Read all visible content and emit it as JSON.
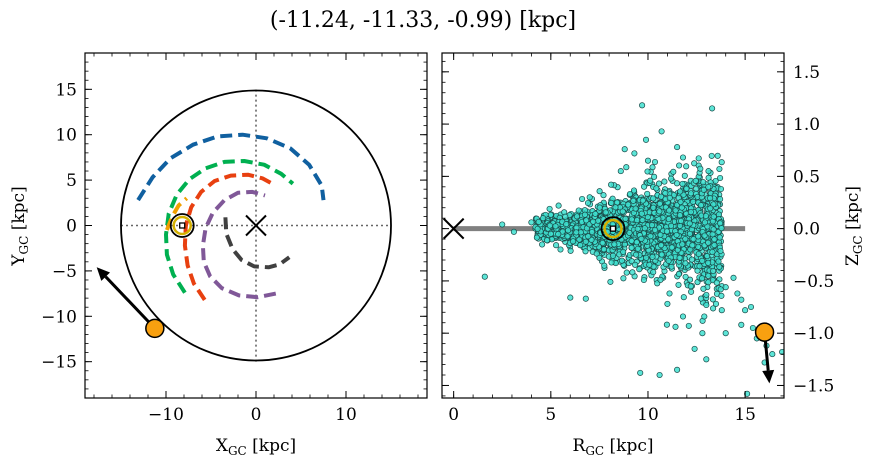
{
  "figure": {
    "title": "(-11.24, -11.33, -0.99) [kpc]"
  },
  "chart_data": [
    {
      "type": "scatter",
      "panel": "left",
      "xlabel": "X",
      "xlabel_sub": "GC",
      "xlabel_unit": " [kpc]",
      "ylabel": "Y",
      "ylabel_sub": "GC",
      "ylabel_unit": " [kpc]",
      "xlim": [
        -19,
        19
      ],
      "ylim": [
        -19,
        19
      ],
      "xticks": [
        -10,
        0,
        10
      ],
      "yticks": [
        -15,
        -10,
        -5,
        0,
        5,
        10,
        15
      ],
      "grid": false,
      "galactic_center": [
        0,
        0
      ],
      "disk_radius": 15,
      "sun_position": [
        -8.2,
        0
      ],
      "target_position": [
        -11.24,
        -11.33
      ],
      "velocity_arrow_end": [
        -17.7,
        -4.6
      ],
      "spiral_arms": [
        {
          "color": "#1060a0",
          "points": [
            [
              -13.1,
              2.8
            ],
            [
              -11.5,
              5.3
            ],
            [
              -9.5,
              7.4
            ],
            [
              -7,
              8.9
            ],
            [
              -4.3,
              9.8
            ],
            [
              -1.5,
              10
            ],
            [
              1.2,
              9.6
            ],
            [
              3.8,
              8.5
            ],
            [
              5.9,
              6.7
            ],
            [
              7.3,
              4.4
            ],
            [
              7.5,
              2.8
            ]
          ]
        },
        {
          "color": "#00b050",
          "points": [
            [
              -7.9,
              -7.4
            ],
            [
              -9.2,
              -5.4
            ],
            [
              -9.9,
              -3.2
            ],
            [
              -10,
              -1
            ],
            [
              -9.7,
              1.3
            ],
            [
              -8.8,
              3.4
            ],
            [
              -7.4,
              5.1
            ],
            [
              -5.6,
              6.3
            ],
            [
              -3.5,
              7
            ],
            [
              -1.3,
              7.1
            ],
            [
              0.9,
              6.7
            ],
            [
              2.8,
              5.7
            ],
            [
              4.1,
              4.6
            ]
          ]
        },
        {
          "color": "#e84010",
          "points": [
            [
              -5.7,
              -8.2
            ],
            [
              -6.9,
              -6.4
            ],
            [
              -7.6,
              -4.4
            ],
            [
              -7.9,
              -2.2
            ],
            [
              -7.8,
              0
            ],
            [
              -7.2,
              2
            ],
            [
              -6.1,
              3.7
            ],
            [
              -4.6,
              4.9
            ],
            [
              -2.8,
              5.5
            ],
            [
              -0.9,
              5.6
            ],
            [
              0.7,
              5.2
            ],
            [
              1.8,
              4.6
            ]
          ]
        },
        {
          "color": "#805898",
          "points": [
            [
              2.2,
              -7.5
            ],
            [
              0.2,
              -7.9
            ],
            [
              -1.9,
              -7.7
            ],
            [
              -3.8,
              -6.9
            ],
            [
              -5.1,
              -5.6
            ],
            [
              -5.8,
              -4
            ],
            [
              -5.9,
              -2.2
            ],
            [
              -5.6,
              -0.3
            ],
            [
              -4.8,
              1.4
            ],
            [
              -3.5,
              2.8
            ],
            [
              -2,
              3.6
            ],
            [
              -0.4,
              3.7
            ],
            [
              1,
              3.3
            ]
          ]
        },
        {
          "color": "#404040",
          "points": [
            [
              -3.4,
              0.9
            ],
            [
              -3.3,
              -0.9
            ],
            [
              -2.6,
              -2.6
            ],
            [
              -1.6,
              -3.8
            ],
            [
              -0.2,
              -4.5
            ],
            [
              1.4,
              -4.6
            ],
            [
              2.6,
              -4.3
            ],
            [
              3.7,
              -3.5
            ]
          ]
        },
        {
          "color": "#f0a000",
          "points": [
            [
              -9.9,
              -0.5
            ],
            [
              -9.3,
              1
            ],
            [
              -8.6,
              2.2
            ],
            [
              -7.7,
              3
            ]
          ]
        }
      ]
    },
    {
      "type": "scatter",
      "panel": "right",
      "xlabel": "R",
      "xlabel_sub": "GC",
      "xlabel_unit": " [kpc]",
      "ylabel": "Z",
      "ylabel_sub": "GC",
      "ylabel_unit": " [kpc]",
      "xlim": [
        -0.6,
        17
      ],
      "ylim": [
        -1.62,
        1.68
      ],
      "xticks": [
        0,
        5,
        10,
        15
      ],
      "yticks": [
        -1.5,
        -1.0,
        -0.5,
        0.0,
        0.5,
        1.0,
        1.5
      ],
      "ytick_labels": [
        "−1.5",
        "−1.0",
        "−0.5",
        "0.0",
        "0.5",
        "1.0",
        "1.5"
      ],
      "yaxis_side": "right",
      "grid": false,
      "galactic_center": [
        0,
        0
      ],
      "disk_line": [
        0,
        15
      ],
      "sun_position": [
        8.2,
        0
      ],
      "target_position": [
        16.0,
        -0.99
      ],
      "velocity_arrow_end": [
        16.25,
        -1.48
      ],
      "star_color": "#40e0d0",
      "bulk_star_count": 2400,
      "stars": [
        [
          1.6,
          -0.46
        ],
        [
          2.5,
          0.04
        ],
        [
          3.1,
          -0.03
        ],
        [
          4.0,
          0.06
        ],
        [
          5.0,
          -0.05
        ],
        [
          5.5,
          -0.2
        ],
        [
          5.4,
          0.22
        ],
        [
          6.8,
          -0.67
        ],
        [
          7.0,
          0.3
        ],
        [
          7.5,
          -0.28
        ],
        [
          8.1,
          0.42
        ],
        [
          8.6,
          0.55
        ],
        [
          9.7,
          1.18
        ],
        [
          9.9,
          0.85
        ],
        [
          10.7,
          0.93
        ],
        [
          11.5,
          0.78
        ],
        [
          11.8,
          0.68
        ],
        [
          13.3,
          1.15
        ],
        [
          8.8,
          0.76
        ],
        [
          9.3,
          0.72
        ],
        [
          10.0,
          0.65
        ],
        [
          11.8,
          -0.84
        ],
        [
          12.1,
          -0.93
        ],
        [
          12.8,
          -1.0
        ],
        [
          13.0,
          -0.73
        ],
        [
          13.5,
          -0.72
        ],
        [
          14.0,
          -0.56
        ],
        [
          14.4,
          -0.47
        ],
        [
          14.6,
          -0.62
        ],
        [
          14.8,
          -0.68
        ],
        [
          15.0,
          -0.78
        ],
        [
          15.3,
          -0.75
        ],
        [
          15.4,
          -0.95
        ],
        [
          15.6,
          -1.05
        ],
        [
          16.1,
          -1.12
        ],
        [
          16.4,
          -1.2
        ],
        [
          16.9,
          -1.18
        ],
        [
          14.8,
          -0.92
        ],
        [
          14.0,
          -1.0
        ],
        [
          13.0,
          -1.25
        ],
        [
          11.5,
          -1.35
        ],
        [
          15.1,
          -1.58
        ],
        [
          16.0,
          -1.28
        ],
        [
          9.6,
          -1.38
        ],
        [
          10.6,
          -1.4
        ],
        [
          12.4,
          -1.15
        ],
        [
          6.0,
          -0.66
        ],
        [
          12.9,
          -0.84
        ],
        [
          11.0,
          -0.72
        ],
        [
          13.8,
          -0.78
        ]
      ]
    }
  ]
}
